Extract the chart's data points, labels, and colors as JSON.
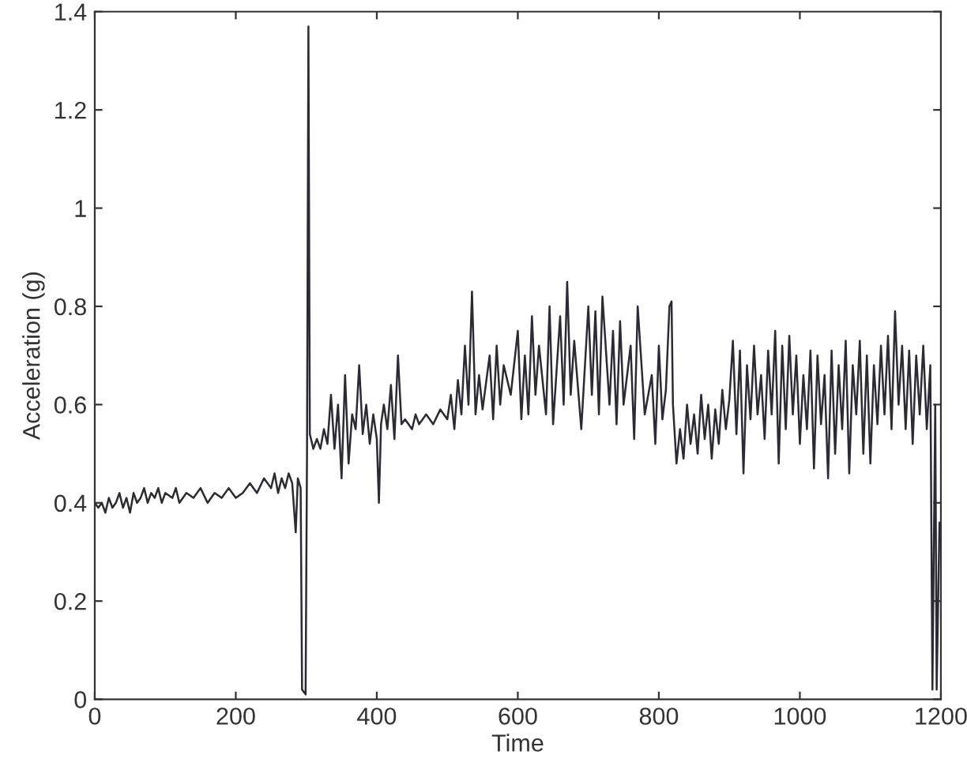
{
  "chart_data": {
    "type": "line",
    "xlabel": "Time",
    "ylabel": "Acceleration (g)",
    "xlim": [
      0,
      1200
    ],
    "xticks": [
      0,
      200,
      400,
      600,
      800,
      1000,
      1200
    ],
    "ylim": [
      0,
      1.4
    ],
    "yticks": [
      0,
      0.2,
      0.4,
      0.6,
      0.8,
      1,
      1.2,
      1.4
    ],
    "grid": false,
    "legend": false,
    "line_style": "solid",
    "marker": "none",
    "series": [
      {
        "color": "#2b2b33",
        "x": [
          0,
          5,
          10,
          15,
          20,
          25,
          30,
          35,
          40,
          45,
          50,
          55,
          60,
          65,
          70,
          75,
          80,
          85,
          90,
          95,
          100,
          110,
          115,
          120,
          130,
          140,
          150,
          160,
          170,
          180,
          190,
          200,
          210,
          220,
          230,
          240,
          250,
          255,
          260,
          265,
          270,
          275,
          280,
          285,
          288,
          292,
          294,
          299,
          301,
          303,
          305,
          310,
          315,
          320,
          325,
          330,
          335,
          340,
          345,
          350,
          355,
          360,
          365,
          370,
          375,
          380,
          385,
          390,
          395,
          400,
          403,
          406,
          410,
          415,
          420,
          425,
          430,
          435,
          440,
          450,
          455,
          460,
          470,
          480,
          490,
          500,
          505,
          510,
          515,
          520,
          525,
          530,
          535,
          540,
          545,
          550,
          560,
          565,
          570,
          575,
          580,
          590,
          600,
          605,
          610,
          615,
          620,
          625,
          630,
          640,
          645,
          650,
          660,
          665,
          670,
          675,
          680,
          690,
          700,
          705,
          710,
          715,
          720,
          730,
          735,
          740,
          745,
          750,
          760,
          765,
          770,
          780,
          790,
          795,
          800,
          805,
          810,
          815,
          818,
          820,
          825,
          830,
          835,
          840,
          845,
          850,
          855,
          860,
          865,
          870,
          875,
          880,
          885,
          890,
          895,
          900,
          905,
          910,
          915,
          920,
          925,
          930,
          935,
          940,
          945,
          950,
          955,
          960,
          965,
          970,
          975,
          980,
          985,
          990,
          995,
          1000,
          1005,
          1010,
          1015,
          1020,
          1025,
          1030,
          1035,
          1040,
          1045,
          1050,
          1055,
          1060,
          1065,
          1070,
          1075,
          1080,
          1085,
          1090,
          1095,
          1100,
          1105,
          1110,
          1115,
          1120,
          1125,
          1130,
          1135,
          1140,
          1145,
          1150,
          1155,
          1160,
          1165,
          1170,
          1175,
          1180,
          1185,
          1188,
          1192,
          1194,
          1198
        ],
        "values": [
          0.4,
          0.39,
          0.4,
          0.38,
          0.41,
          0.39,
          0.4,
          0.42,
          0.39,
          0.41,
          0.38,
          0.42,
          0.4,
          0.41,
          0.43,
          0.4,
          0.42,
          0.41,
          0.43,
          0.4,
          0.42,
          0.41,
          0.43,
          0.4,
          0.42,
          0.41,
          0.43,
          0.4,
          0.42,
          0.41,
          0.43,
          0.41,
          0.42,
          0.44,
          0.42,
          0.45,
          0.43,
          0.46,
          0.42,
          0.45,
          0.43,
          0.46,
          0.44,
          0.34,
          0.45,
          0.43,
          0.02,
          0.01,
          0.5,
          1.37,
          0.54,
          0.51,
          0.53,
          0.51,
          0.55,
          0.52,
          0.62,
          0.51,
          0.6,
          0.45,
          0.66,
          0.48,
          0.58,
          0.55,
          0.68,
          0.54,
          0.6,
          0.52,
          0.58,
          0.53,
          0.4,
          0.56,
          0.6,
          0.55,
          0.64,
          0.53,
          0.7,
          0.56,
          0.57,
          0.55,
          0.58,
          0.56,
          0.58,
          0.56,
          0.59,
          0.57,
          0.62,
          0.55,
          0.65,
          0.58,
          0.72,
          0.6,
          0.83,
          0.58,
          0.66,
          0.59,
          0.7,
          0.57,
          0.72,
          0.6,
          0.68,
          0.62,
          0.75,
          0.57,
          0.7,
          0.58,
          0.78,
          0.62,
          0.72,
          0.58,
          0.8,
          0.56,
          0.78,
          0.6,
          0.85,
          0.62,
          0.73,
          0.55,
          0.8,
          0.62,
          0.79,
          0.58,
          0.82,
          0.6,
          0.75,
          0.56,
          0.77,
          0.6,
          0.72,
          0.53,
          0.8,
          0.58,
          0.66,
          0.52,
          0.72,
          0.57,
          0.63,
          0.8,
          0.81,
          0.6,
          0.48,
          0.55,
          0.49,
          0.6,
          0.52,
          0.58,
          0.5,
          0.62,
          0.53,
          0.6,
          0.49,
          0.59,
          0.52,
          0.63,
          0.55,
          0.61,
          0.73,
          0.54,
          0.71,
          0.46,
          0.68,
          0.57,
          0.72,
          0.58,
          0.66,
          0.53,
          0.71,
          0.58,
          0.75,
          0.48,
          0.72,
          0.55,
          0.74,
          0.58,
          0.7,
          0.52,
          0.66,
          0.55,
          0.71,
          0.47,
          0.7,
          0.56,
          0.66,
          0.45,
          0.71,
          0.5,
          0.68,
          0.55,
          0.73,
          0.46,
          0.68,
          0.58,
          0.73,
          0.5,
          0.7,
          0.48,
          0.68,
          0.56,
          0.72,
          0.58,
          0.74,
          0.55,
          0.79,
          0.6,
          0.72,
          0.55,
          0.71,
          0.52,
          0.7,
          0.58,
          0.72,
          0.55,
          0.68,
          0.02,
          0.6,
          0.02,
          0.36
        ]
      }
    ]
  }
}
